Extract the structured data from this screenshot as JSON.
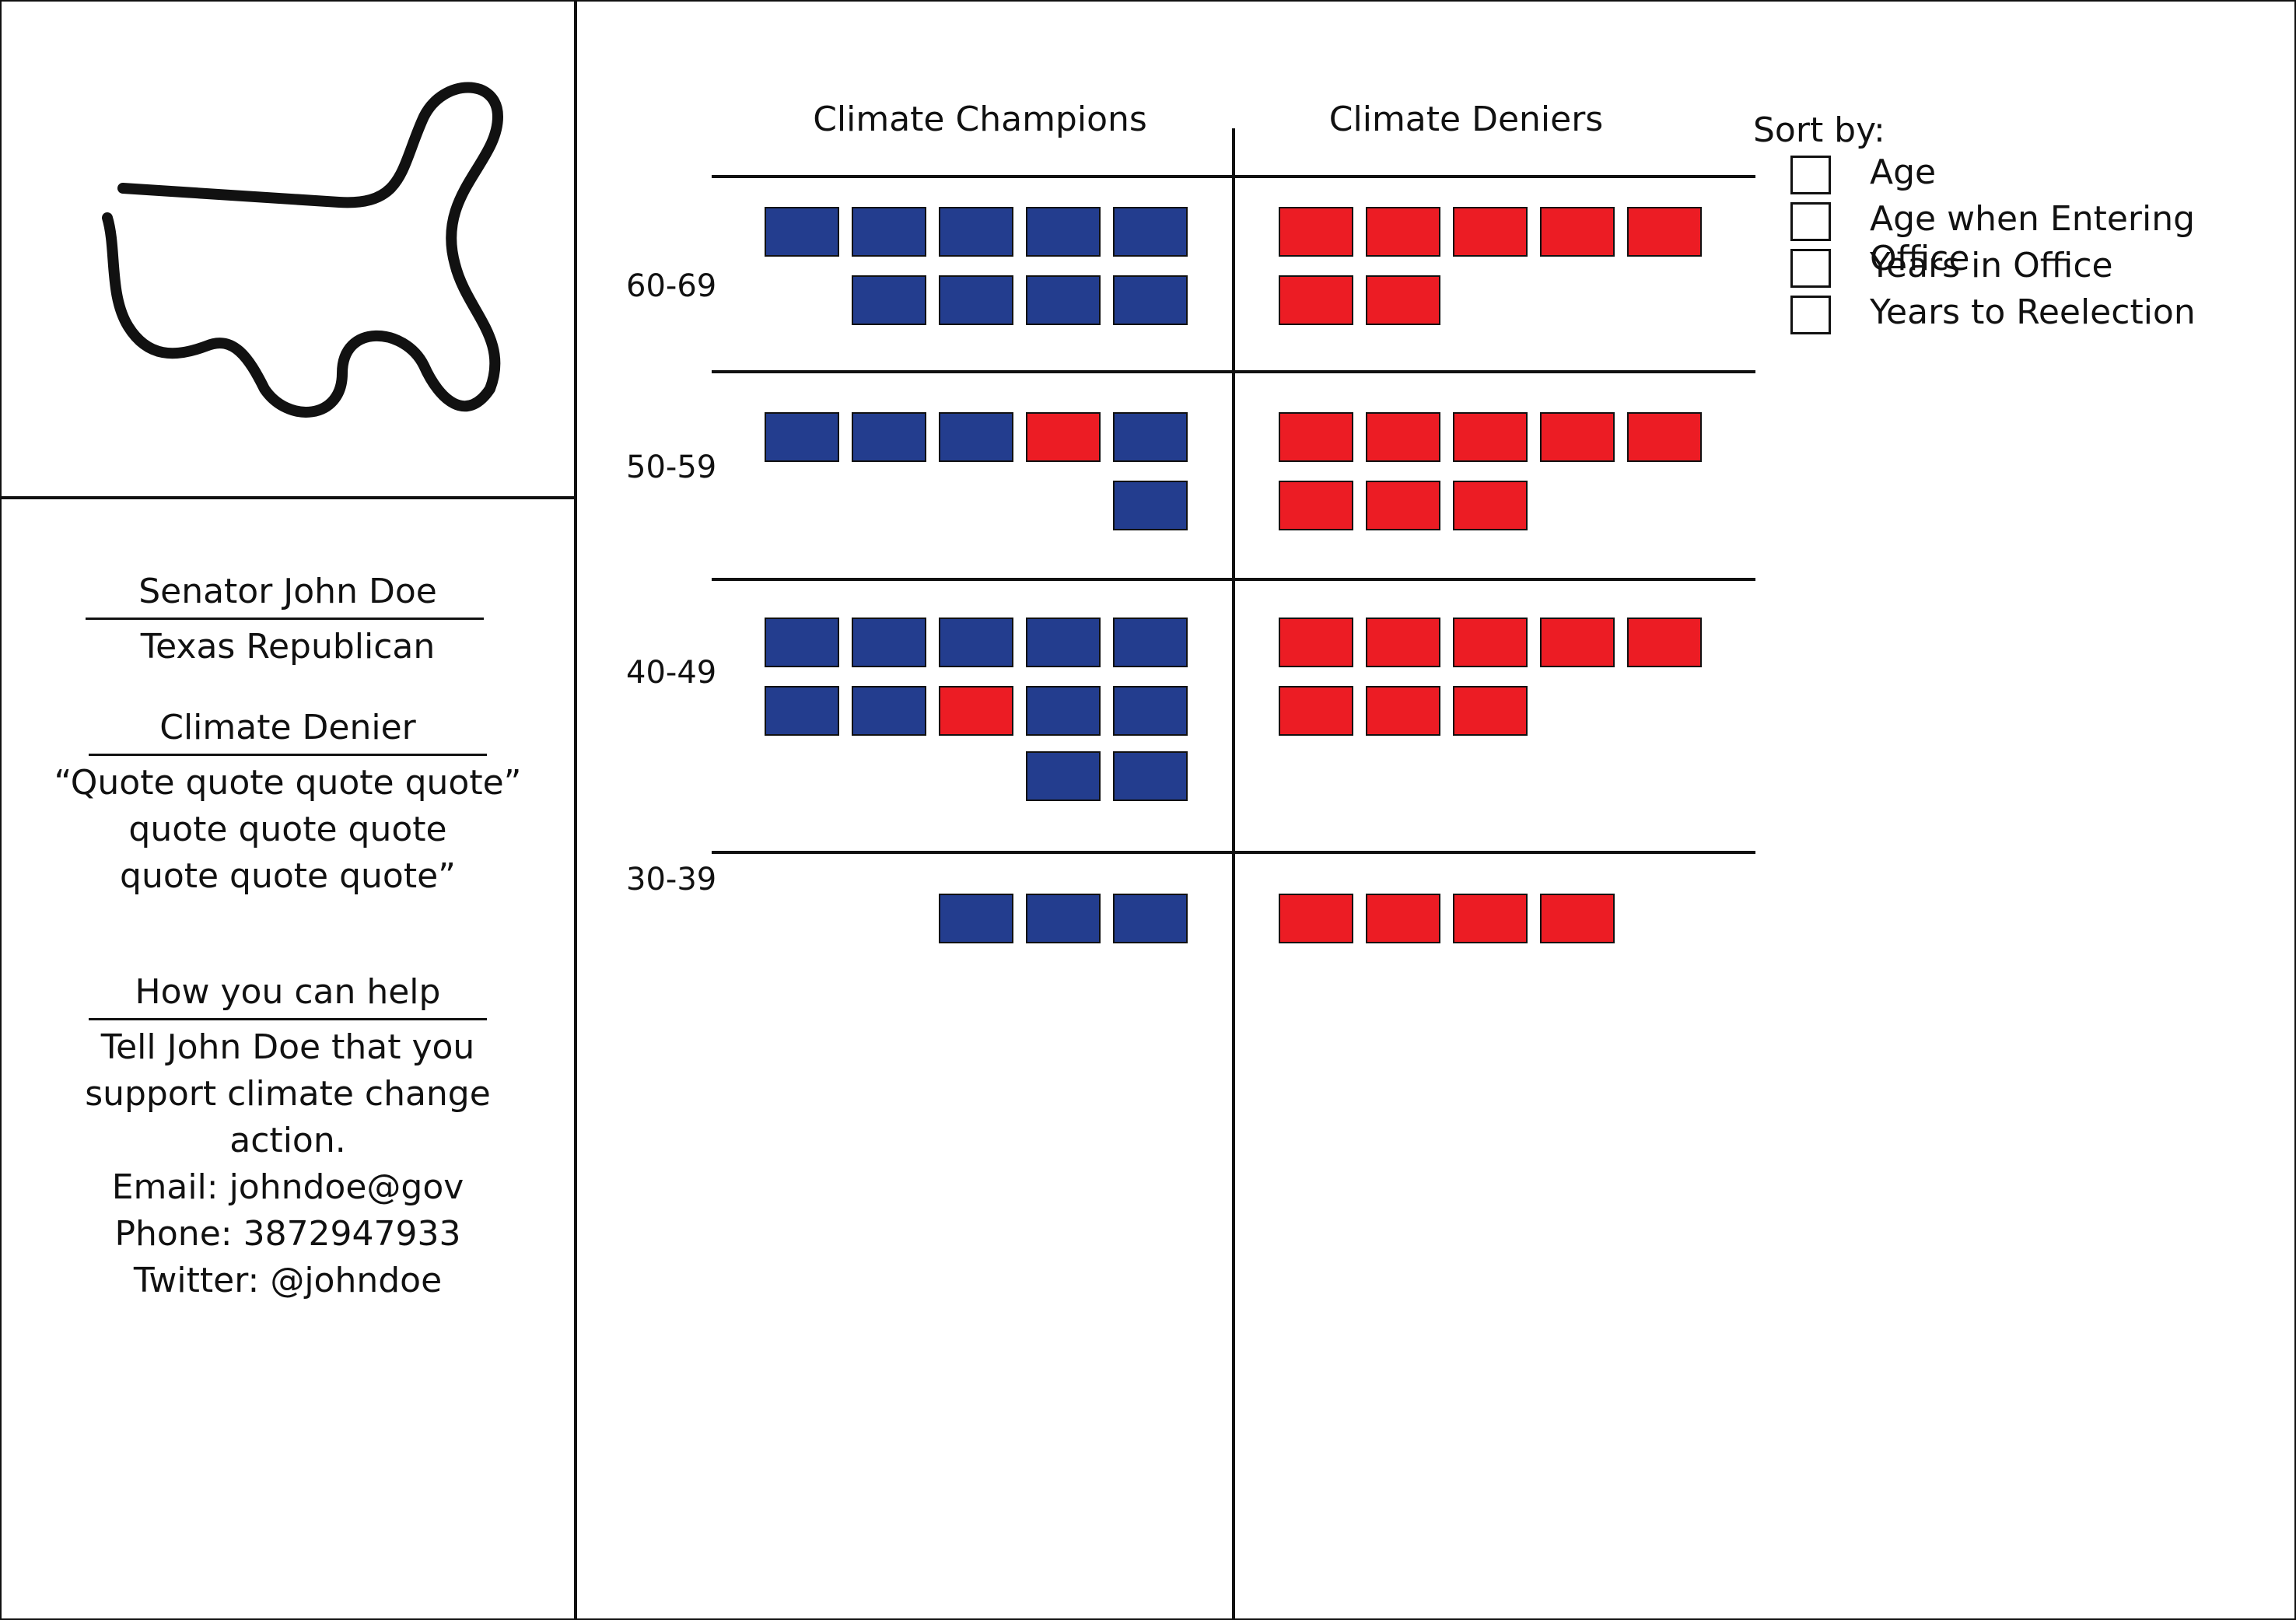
{
  "colors": {
    "champion": "#233d8e",
    "denier": "#ec1c24",
    "line": "#111111"
  },
  "profile": {
    "map_icon": "texas-outline-icon",
    "name": "Senator John Doe",
    "party": "Texas Republican",
    "stance": "Climate Denier",
    "quote_lines": [
      "“Quote quote quote quote”",
      "quote quote quote",
      "quote quote quote”"
    ],
    "help_heading": "How you can help",
    "help_lines": [
      "Tell John Doe that you",
      "support climate change",
      "action.",
      "Email: johndoe@gov",
      "Phone: 3872947933",
      "Twitter: @johndoe"
    ]
  },
  "columns": {
    "champions": "Climate Champions",
    "deniers": "Climate Deniers"
  },
  "sort": {
    "label": "Sort by:",
    "options": [
      "Age",
      "Age when Entering Office",
      "Years in Office",
      "Years to Reelection"
    ]
  },
  "groups": [
    {
      "label": "60-69",
      "champions": [
        [
          "b",
          "b",
          "b",
          "b",
          "b"
        ],
        [
          "b",
          "b",
          "b",
          "b"
        ]
      ],
      "deniers": [
        [
          "r",
          "r",
          "r",
          "r",
          "r"
        ],
        [
          "r",
          "r"
        ]
      ]
    },
    {
      "label": "50-59",
      "champions": [
        [
          "b",
          "b",
          "b",
          "r",
          "b"
        ],
        [
          "b"
        ]
      ],
      "deniers": [
        [
          "r",
          "r",
          "r",
          "r",
          "r"
        ],
        [
          "r",
          "r",
          "r"
        ]
      ]
    },
    {
      "label": "40-49",
      "champions": [
        [
          "b",
          "b",
          "b",
          "b",
          "b"
        ],
        [
          "b",
          "b",
          "r",
          "b",
          "b"
        ],
        [
          "b",
          "b"
        ]
      ],
      "deniers": [
        [
          "r",
          "r",
          "r",
          "r",
          "r"
        ],
        [
          "r",
          "r",
          "r"
        ]
      ]
    },
    {
      "label": "30-39",
      "champions": [
        [
          "b",
          "b",
          "b"
        ]
      ],
      "deniers": [
        [
          "r",
          "r",
          "r",
          "r"
        ]
      ]
    }
  ]
}
